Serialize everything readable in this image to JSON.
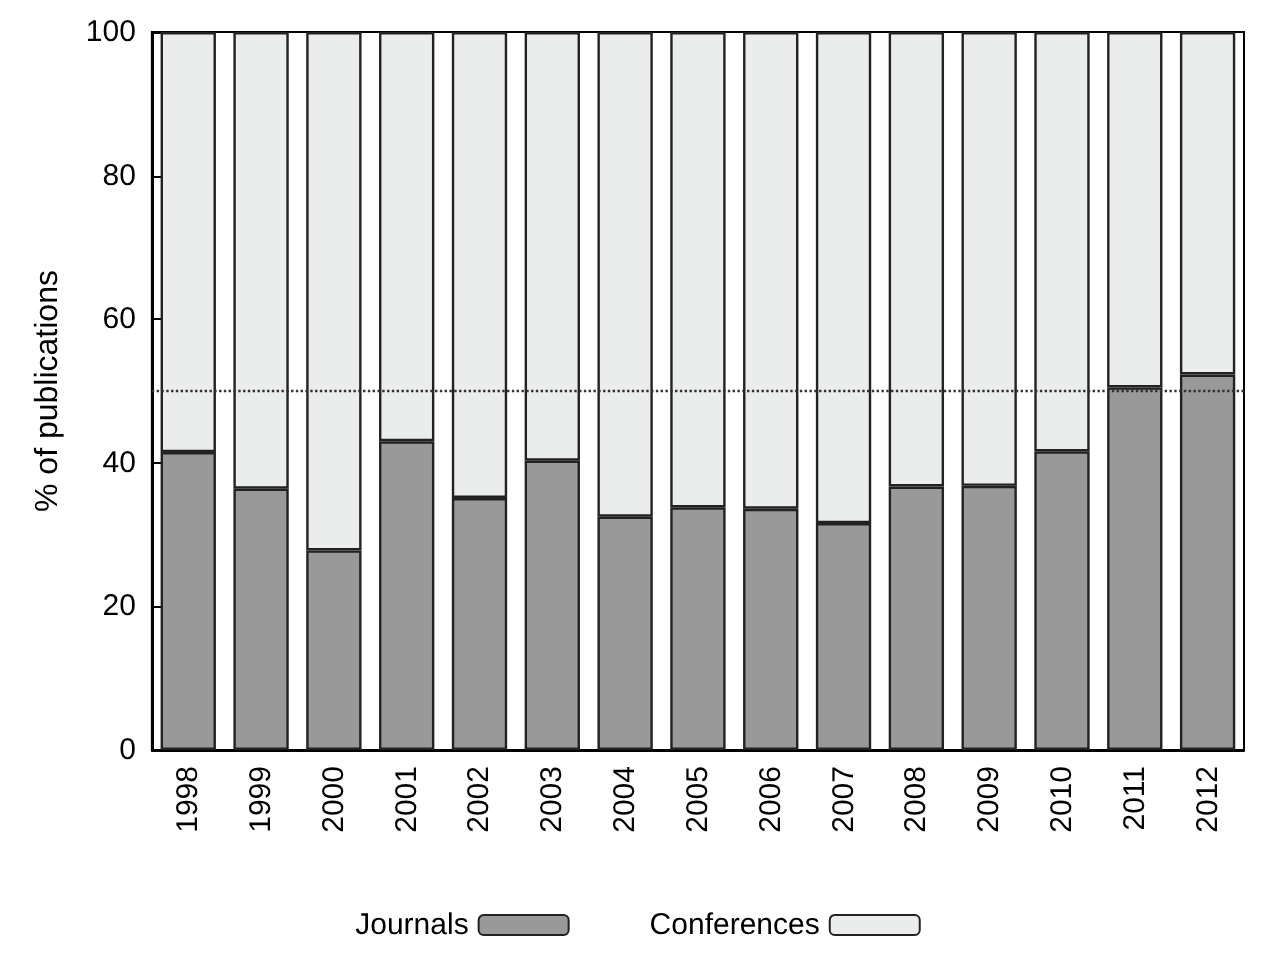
{
  "chart_data": {
    "type": "bar",
    "ylabel": "% of publications",
    "stacked": true,
    "categories": [
      "1998",
      "1999",
      "2000",
      "2001",
      "2002",
      "2003",
      "2004",
      "2005",
      "2006",
      "2007",
      "2008",
      "2009",
      "2010",
      "2011",
      "2012"
    ],
    "series": [
      {
        "name": "Journals",
        "color": "#999999",
        "values": [
          41.5,
          36.4,
          27.8,
          43.0,
          35.1,
          40.3,
          32.5,
          33.8,
          33.6,
          31.6,
          36.7,
          36.8,
          41.6,
          50.5,
          52.3
        ]
      },
      {
        "name": "Conferences",
        "color": "#ebecec",
        "values": [
          58.5,
          63.6,
          72.2,
          57.0,
          64.9,
          59.7,
          67.5,
          66.2,
          66.4,
          68.4,
          63.3,
          63.2,
          58.4,
          49.5,
          47.7
        ]
      }
    ],
    "ylim": [
      0,
      100
    ],
    "yticks": [
      0,
      20,
      40,
      60,
      80,
      100
    ],
    "grid": false,
    "legend": "bottom",
    "ref_lines": [
      {
        "axis": "y",
        "value": 50,
        "line_style": "dotted",
        "color": "#333333"
      }
    ]
  }
}
